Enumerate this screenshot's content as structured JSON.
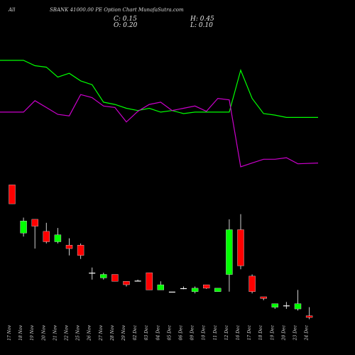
{
  "header": {
    "symbol": "All",
    "title": "SBANK 41000.00  PE Option  Chart MunafaSutra.com",
    "close": "C: 0.15",
    "open": "O: 0.20",
    "high": "H: 0.45",
    "low": "L: 0.10"
  },
  "colors": {
    "background": "#000000",
    "up_candle": "#00ff00",
    "down_candle": "#ff0000",
    "doji": "#ffffff",
    "green_line": "#00ff00",
    "magenta_line": "#cc00cc",
    "text": "#d9d9d9"
  },
  "chart_data": [
    {
      "type": "line",
      "dates": [
        "17 Nov",
        "18 Nov",
        "19 Nov",
        "20 Nov",
        "21 Nov",
        "22 Nov",
        "25 Nov",
        "26 Nov",
        "27 Nov",
        "28 Nov",
        "29 Nov",
        "02 Dec",
        "03 Dec",
        "04 Dec",
        "05 Dec",
        "06 Dec",
        "09 Dec",
        "10 Dec",
        "11 Dec",
        "12 Dec",
        "16 Dec",
        "17 Dec",
        "18 Dec",
        "19 Dec",
        "20 Dec",
        "23 Dec",
        "24 Dec"
      ],
      "series": [
        {
          "color": "#00ff00",
          "values": [
            100,
            100,
            93,
            91,
            78,
            83,
            73,
            68,
            45,
            42,
            37,
            34,
            37,
            32,
            34,
            30,
            32,
            32,
            32,
            32,
            87,
            50,
            30,
            28,
            25,
            25,
            25
          ]
        },
        {
          "color": "#cc00cc",
          "values": [
            32,
            32,
            47,
            38,
            29,
            27,
            55,
            51,
            40,
            38,
            19,
            33,
            42,
            45,
            34,
            37,
            40,
            33,
            50,
            48,
            -40,
            -35,
            -30,
            -30,
            -28,
            -36,
            -35
          ]
        }
      ]
    },
    {
      "type": "candlestick",
      "dates": [
        "17 Nov",
        "18 Nov",
        "19 Nov",
        "20 Nov",
        "21 Nov",
        "22 Nov",
        "25 Nov",
        "26 Nov",
        "27 Nov",
        "28 Nov",
        "29 Nov",
        "02 Dec",
        "03 Dec",
        "04 Dec",
        "05 Dec",
        "06 Dec",
        "09 Dec",
        "10 Dec",
        "11 Dec",
        "12 Dec",
        "16 Dec",
        "17 Dec",
        "18 Dec",
        "19 Dec",
        "20 Dec",
        "23 Dec",
        "24 Dec"
      ],
      "candles": [
        {
          "o": 4.0,
          "h": 4.0,
          "l": 3.45,
          "c": 3.45
        },
        {
          "o": 2.6,
          "h": 3.05,
          "l": 2.5,
          "c": 2.95
        },
        {
          "o": 3.0,
          "h": 3.0,
          "l": 2.15,
          "c": 2.8
        },
        {
          "o": 2.65,
          "h": 2.9,
          "l": 2.3,
          "c": 2.35
        },
        {
          "o": 2.35,
          "h": 2.75,
          "l": 2.3,
          "c": 2.55
        },
        {
          "o": 2.25,
          "h": 2.45,
          "l": 1.95,
          "c": 2.15
        },
        {
          "o": 2.25,
          "h": 2.3,
          "l": 1.85,
          "c": 1.95
        },
        {
          "o": 1.45,
          "h": 1.6,
          "l": 1.25,
          "c": 1.45
        },
        {
          "o": 1.3,
          "h": 1.45,
          "l": 1.25,
          "c": 1.4
        },
        {
          "o": 1.4,
          "h": 1.4,
          "l": 1.2,
          "c": 1.2
        },
        {
          "o": 1.2,
          "h": 1.2,
          "l": 1.05,
          "c": 1.1
        },
        {
          "o": 1.22,
          "h": 1.25,
          "l": 1.2,
          "c": 1.22
        },
        {
          "o": 1.45,
          "h": 1.45,
          "l": 0.95,
          "c": 0.95
        },
        {
          "o": 0.95,
          "h": 1.2,
          "l": 0.95,
          "c": 1.1
        },
        {
          "o": 0.9,
          "h": 0.9,
          "l": 0.9,
          "c": 0.9
        },
        {
          "o": 1.0,
          "h": 1.05,
          "l": 0.97,
          "c": 1.0
        },
        {
          "o": 0.9,
          "h": 1.05,
          "l": 0.85,
          "c": 1.0
        },
        {
          "o": 1.1,
          "h": 1.1,
          "l": 0.98,
          "c": 1.0
        },
        {
          "o": 0.9,
          "h": 1.0,
          "l": 0.9,
          "c": 1.0
        },
        {
          "o": 1.4,
          "h": 3.0,
          "l": 0.9,
          "c": 2.7
        },
        {
          "o": 2.7,
          "h": 3.15,
          "l": 1.55,
          "c": 1.65
        },
        {
          "o": 1.35,
          "h": 1.4,
          "l": 0.85,
          "c": 0.9
        },
        {
          "o": 0.75,
          "h": 0.75,
          "l": 0.65,
          "c": 0.7
        },
        {
          "o": 0.45,
          "h": 0.55,
          "l": 0.4,
          "c": 0.55
        },
        {
          "o": 0.5,
          "h": 0.6,
          "l": 0.4,
          "c": 0.5
        },
        {
          "o": 0.4,
          "h": 0.95,
          "l": 0.35,
          "c": 0.55
        },
        {
          "o": 0.2,
          "h": 0.45,
          "l": 0.1,
          "c": 0.15
        }
      ]
    }
  ]
}
